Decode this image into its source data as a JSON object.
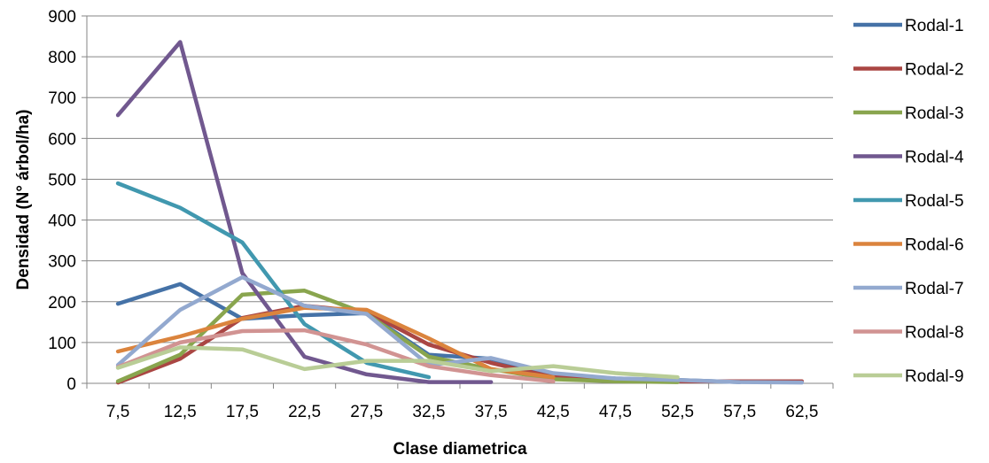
{
  "chart_data": {
    "type": "line",
    "title": "",
    "xlabel": "Clase diametrica",
    "ylabel": "Densidad (N° árbol/ha)",
    "ylim": [
      0,
      900
    ],
    "yticks": [
      0,
      100,
      200,
      300,
      400,
      500,
      600,
      700,
      800,
      900
    ],
    "categories": [
      "7,5",
      "12,5",
      "17,5",
      "22,5",
      "27,5",
      "32,5",
      "37,5",
      "42,5",
      "47,5",
      "52,5",
      "57,5",
      "62,5"
    ],
    "grid": "horizontal",
    "legend_position": "right",
    "series": [
      {
        "name": "Rodal-1",
        "color": "#4572A7",
        "values": [
          195,
          243,
          158,
          167,
          172,
          70,
          60,
          20,
          12,
          8,
          3,
          null
        ]
      },
      {
        "name": "Rodal-2",
        "color": "#AA4643",
        "values": [
          2,
          60,
          160,
          190,
          175,
          95,
          50,
          15,
          8,
          5,
          5,
          5
        ]
      },
      {
        "name": "Rodal-3",
        "color": "#89A54E",
        "values": [
          5,
          70,
          217,
          227,
          170,
          65,
          35,
          10,
          5,
          3,
          null,
          null
        ]
      },
      {
        "name": "Rodal-4",
        "color": "#71588F",
        "values": [
          657,
          836,
          270,
          65,
          22,
          3,
          3,
          null,
          null,
          null,
          null,
          null
        ]
      },
      {
        "name": "Rodal-5",
        "color": "#4198AF",
        "values": [
          490,
          430,
          345,
          145,
          50,
          15,
          null,
          null,
          null,
          null,
          null,
          null
        ]
      },
      {
        "name": "Rodal-6",
        "color": "#DB843D",
        "values": [
          78,
          115,
          158,
          185,
          180,
          110,
          35,
          15,
          null,
          null,
          null,
          null
        ]
      },
      {
        "name": "Rodal-7",
        "color": "#93A9CF",
        "values": [
          45,
          180,
          260,
          190,
          170,
          45,
          62,
          25,
          12,
          8,
          3,
          2
        ]
      },
      {
        "name": "Rodal-8",
        "color": "#D19392",
        "values": [
          40,
          100,
          128,
          130,
          95,
          42,
          20,
          5,
          null,
          null,
          null,
          null
        ]
      },
      {
        "name": "Rodal-9",
        "color": "#B9CD96",
        "values": [
          38,
          88,
          83,
          35,
          55,
          55,
          30,
          42,
          25,
          15,
          null,
          null
        ]
      }
    ]
  }
}
